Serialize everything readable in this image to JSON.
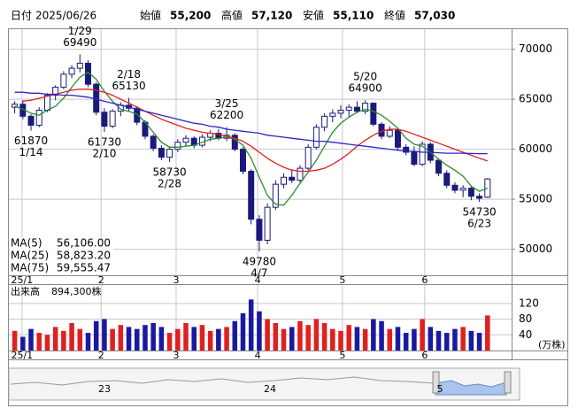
{
  "header": {
    "date_label": "日付",
    "date": "2025/06/26",
    "fields": [
      {
        "name": "始値",
        "value": "55,200",
        "color": "#000000"
      },
      {
        "name": "高値",
        "value": "57,120",
        "color": "#d01010"
      },
      {
        "name": "安値",
        "value": "55,110",
        "color": "#108010"
      },
      {
        "name": "終値",
        "value": "57,030",
        "color": "#000000"
      }
    ]
  },
  "chart_data": {
    "type": "candlestick",
    "up_color": "#ffffff",
    "down_color": "#1a1a7a",
    "edge_color": "#1a1a7a",
    "xlim": [
      -0.5,
      59
    ],
    "xticks": [
      {
        "value": 0.9,
        "label": "25/1"
      },
      {
        "value": 10.6,
        "label": "2"
      },
      {
        "value": 19.8,
        "label": "3"
      },
      {
        "value": 29.8,
        "label": "4"
      },
      {
        "value": 40.2,
        "label": "5"
      },
      {
        "value": 50.3,
        "label": "6"
      }
    ],
    "ylim": [
      47400,
      72000
    ],
    "yticks": [
      50000,
      55000,
      60000,
      65000,
      70000
    ],
    "grid": true,
    "candles": [
      [
        64200,
        64800,
        63600,
        64500
      ],
      [
        64500,
        64900,
        63000,
        63300
      ],
      [
        63300,
        63500,
        61870,
        62400
      ],
      [
        62400,
        64200,
        62200,
        63900
      ],
      [
        63900,
        65600,
        63700,
        65400
      ],
      [
        65400,
        66400,
        64900,
        66200
      ],
      [
        66200,
        67800,
        66000,
        67500
      ],
      [
        67500,
        68400,
        67100,
        68100
      ],
      [
        68100,
        69490,
        67700,
        68600
      ],
      [
        68600,
        68900,
        66200,
        66500
      ],
      [
        66500,
        66700,
        63400,
        63700
      ],
      [
        63700,
        64100,
        61730,
        62300
      ],
      [
        62300,
        64000,
        62100,
        63800
      ],
      [
        63800,
        64700,
        63300,
        64400
      ],
      [
        64400,
        65130,
        63800,
        64100
      ],
      [
        64100,
        64300,
        62400,
        62700
      ],
      [
        62700,
        62900,
        61000,
        61300
      ],
      [
        61300,
        61500,
        59800,
        60100
      ],
      [
        60100,
        60400,
        58900,
        59200
      ],
      [
        59200,
        60300,
        58730,
        60000
      ],
      [
        60000,
        61000,
        59700,
        60700
      ],
      [
        60700,
        61400,
        60300,
        61100
      ],
      [
        61100,
        61300,
        60100,
        60400
      ],
      [
        60400,
        61500,
        60200,
        61200
      ],
      [
        61200,
        61900,
        60800,
        61600
      ],
      [
        61600,
        62000,
        60900,
        61100
      ],
      [
        61100,
        62200,
        60800,
        61400
      ],
      [
        61400,
        61600,
        59800,
        60000
      ],
      [
        60000,
        60200,
        57500,
        57800
      ],
      [
        57800,
        58000,
        52500,
        53000
      ],
      [
        53000,
        53400,
        49780,
        50900
      ],
      [
        50900,
        54600,
        50500,
        54200
      ],
      [
        54200,
        56900,
        53900,
        56500
      ],
      [
        56500,
        57600,
        56100,
        57200
      ],
      [
        57200,
        58000,
        56600,
        56900
      ],
      [
        56900,
        58400,
        56700,
        58100
      ],
      [
        58100,
        60500,
        57900,
        60200
      ],
      [
        60200,
        62500,
        60000,
        62200
      ],
      [
        62200,
        63600,
        61800,
        63300
      ],
      [
        63300,
        64000,
        62700,
        63600
      ],
      [
        63600,
        64400,
        63100,
        63900
      ],
      [
        63900,
        64500,
        63200,
        64200
      ],
      [
        64200,
        64800,
        63600,
        63800
      ],
      [
        63800,
        64900,
        63500,
        64600
      ],
      [
        64600,
        64700,
        62300,
        62500
      ],
      [
        62500,
        62700,
        61000,
        61300
      ],
      [
        61300,
        62300,
        61100,
        61900
      ],
      [
        61900,
        62100,
        59900,
        60200
      ],
      [
        60200,
        60500,
        59400,
        59700
      ],
      [
        59700,
        60300,
        58300,
        58500
      ],
      [
        58500,
        60800,
        58300,
        60500
      ],
      [
        60500,
        60700,
        58600,
        58900
      ],
      [
        58900,
        59100,
        57300,
        57600
      ],
      [
        57600,
        57900,
        56100,
        56400
      ],
      [
        56400,
        56700,
        55600,
        55900
      ],
      [
        55900,
        56400,
        55200,
        56100
      ],
      [
        56100,
        56300,
        54900,
        55300
      ],
      [
        55300,
        55600,
        54730,
        55100
      ],
      [
        55200,
        57120,
        55110,
        57030
      ]
    ],
    "series": [
      {
        "name": "MA(5)",
        "color": "#2e8b2e",
        "last": {
          "value": 56106,
          "label": "56,106.00"
        },
        "values": [
          64300,
          64000,
          63600,
          63400,
          63900,
          64300,
          65100,
          66200,
          67200,
          67700,
          67000,
          65800,
          64800,
          64000,
          63800,
          63500,
          62700,
          61700,
          60700,
          60200,
          60200,
          60300,
          60400,
          60700,
          61000,
          61100,
          61200,
          61000,
          60400,
          59100,
          57200,
          55400,
          54500,
          54400,
          55400,
          56600,
          57700,
          58900,
          60300,
          61700,
          62600,
          63200,
          63700,
          64000,
          63800,
          63400,
          62800,
          62100,
          61100,
          60500,
          60300,
          59700,
          59000,
          58400,
          57900,
          57300,
          56300,
          55800,
          56106
        ]
      },
      {
        "name": "MA(25)",
        "color": "#e02020",
        "last": {
          "value": 58823.2,
          "label": "58,823.20"
        },
        "values": [
          null,
          64800,
          64900,
          65100,
          65300,
          65500,
          65700,
          65900,
          66000,
          66000,
          65900,
          65700,
          65400,
          65000,
          64600,
          64200,
          63800,
          63400,
          63000,
          62700,
          62400,
          62100,
          61900,
          61700,
          61600,
          61500,
          61300,
          61100,
          60800,
          60300,
          59700,
          59100,
          58600,
          58200,
          57900,
          57800,
          57800,
          57900,
          58100,
          58500,
          59000,
          59600,
          60300,
          60900,
          61400,
          61800,
          62000,
          62000,
          61800,
          61500,
          61200,
          60900,
          60600,
          60300,
          60000,
          59700,
          59400,
          59100,
          58823.2
        ]
      },
      {
        "name": "MA(75)",
        "color": "#2828c8",
        "last": {
          "value": 59555.47,
          "label": "59,555.47"
        },
        "values": [
          65700,
          65700,
          65600,
          65600,
          65500,
          65500,
          65400,
          65400,
          65300,
          65200,
          65000,
          64800,
          64600,
          64400,
          64200,
          64000,
          63800,
          63600,
          63400,
          63200,
          63000,
          62800,
          62600,
          62500,
          62300,
          62200,
          62000,
          61900,
          61800,
          61700,
          61600,
          61400,
          61300,
          61200,
          61100,
          61000,
          60900,
          60800,
          60800,
          60700,
          60600,
          60500,
          60400,
          60300,
          60200,
          60100,
          60000,
          59900,
          59800,
          59800,
          59700,
          59700,
          59650,
          59600,
          59600,
          59600,
          59580,
          59560,
          59555.47
        ]
      }
    ],
    "annotations": [
      {
        "index": 2,
        "value": 61870,
        "date": "1/14",
        "pos": "below"
      },
      {
        "index": 8,
        "value": 69490,
        "date": "1/29",
        "pos": "above"
      },
      {
        "index": 11,
        "value": 61730,
        "date": "2/10",
        "pos": "below"
      },
      {
        "index": 14,
        "value": 65130,
        "date": "2/18",
        "pos": "above"
      },
      {
        "index": 19,
        "value": 58730,
        "date": "2/28",
        "pos": "below"
      },
      {
        "index": 26,
        "value": 62200,
        "date": "3/25",
        "pos": "above"
      },
      {
        "index": 30,
        "value": 49780,
        "date": "4/7",
        "pos": "below"
      },
      {
        "index": 43,
        "value": 64900,
        "date": "5/20",
        "pos": "above"
      },
      {
        "index": 57,
        "value": 54730,
        "date": "6/23",
        "pos": "below"
      }
    ],
    "volume": {
      "label": "出来高",
      "last": {
        "value": 894300,
        "label": "894,300株"
      },
      "unit": "(万株)",
      "up_color": "#e02020",
      "down_color": "#1a1aa0",
      "ylim": [
        0,
        167
      ],
      "yticks": [
        40,
        80,
        120
      ],
      "values": [
        50,
        35,
        55,
        45,
        40,
        60,
        50,
        70,
        55,
        45,
        75,
        80,
        55,
        65,
        60,
        55,
        65,
        70,
        60,
        45,
        55,
        70,
        60,
        65,
        50,
        55,
        60,
        75,
        95,
        130,
        100,
        80,
        70,
        55,
        60,
        75,
        65,
        80,
        70,
        55,
        50,
        65,
        60,
        55,
        80,
        75,
        55,
        60,
        45,
        55,
        80,
        60,
        50,
        45,
        55,
        60,
        50,
        45,
        89.43
      ]
    }
  },
  "navigator": {
    "labels": [
      "23",
      "24",
      "5"
    ]
  }
}
